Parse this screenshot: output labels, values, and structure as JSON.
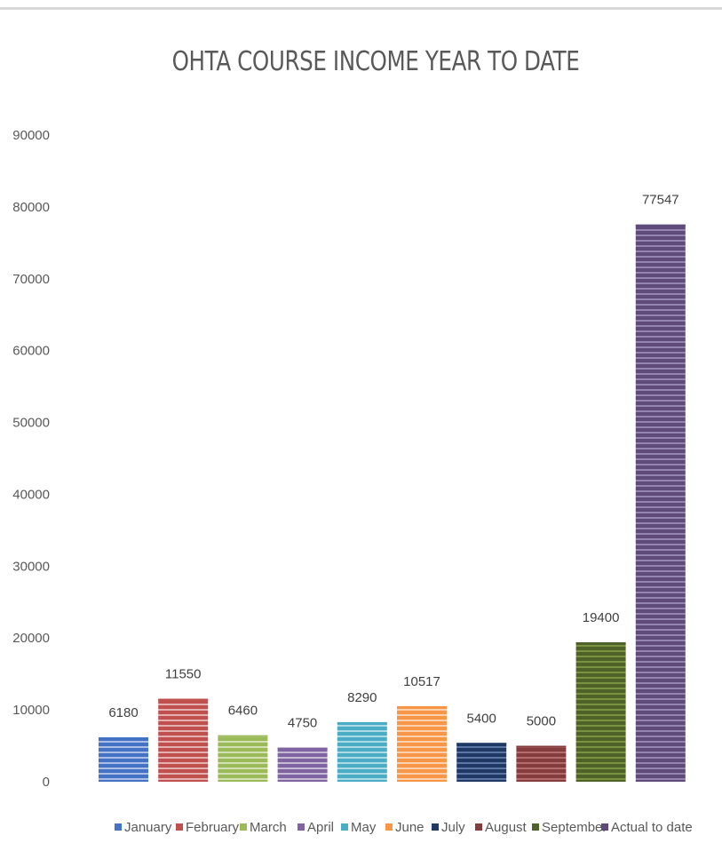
{
  "chart_data": {
    "type": "bar",
    "title": "OHTA COURSE INCOME YEAR TO DATE",
    "xlabel": "",
    "ylabel": "",
    "ylim": [
      0,
      90000
    ],
    "yticks": [
      0,
      10000,
      20000,
      30000,
      40000,
      50000,
      60000,
      70000,
      80000,
      90000
    ],
    "grid": false,
    "legend_position": "bottom",
    "categories": [
      "January",
      "February",
      "March",
      "April",
      "May",
      "June",
      "July",
      "August",
      "September",
      "Actual to date"
    ],
    "values": [
      6180,
      11550,
      6460,
      4750,
      8290,
      10517,
      5400,
      5000,
      19400,
      77547
    ],
    "data_labels": [
      "6180",
      "11550",
      "6460",
      "4750",
      "8290",
      "10517",
      "5400",
      "5000",
      "19400",
      "77547"
    ],
    "colors": [
      "#4472c4",
      "#c0504d",
      "#9bbb59",
      "#8064a2",
      "#4bacc6",
      "#f79646",
      "#1f3864",
      "#843c3c",
      "#4f6228",
      "#5e4b7a"
    ],
    "stripe_colors": [
      "#ffffff",
      "#ffffff",
      "#ffffff",
      "#ffffff",
      "#ffffff",
      "#ffffff",
      "#8eaadb",
      "#d99594",
      "#9bbb59",
      "#c3b3dd"
    ],
    "bar_pattern": "horizontal-stripes"
  }
}
